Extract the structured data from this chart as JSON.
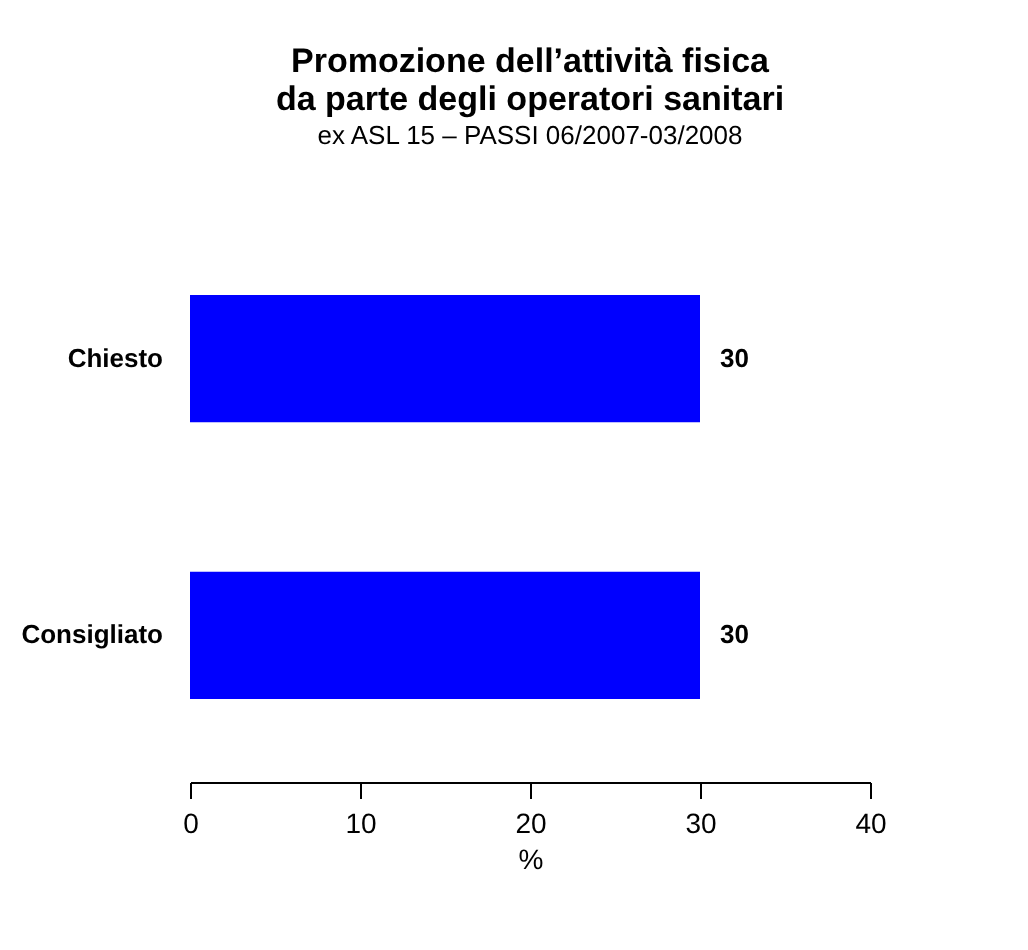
{
  "chart_data": {
    "type": "bar",
    "orientation": "horizontal",
    "title": "Promozione dell’attività fisica\nda parte degli operatori sanitari",
    "subtitle": "ex ASL 15 – PASSI 06/2007-03/2008",
    "xlabel": "%",
    "categories": [
      "Chiesto",
      "Consigliato"
    ],
    "values": [
      30,
      30
    ],
    "color": "#0000ff",
    "xlim": [
      0,
      40
    ],
    "xticks": [
      0,
      10,
      20,
      30,
      40
    ],
    "data_labels": true,
    "grid": false
  }
}
